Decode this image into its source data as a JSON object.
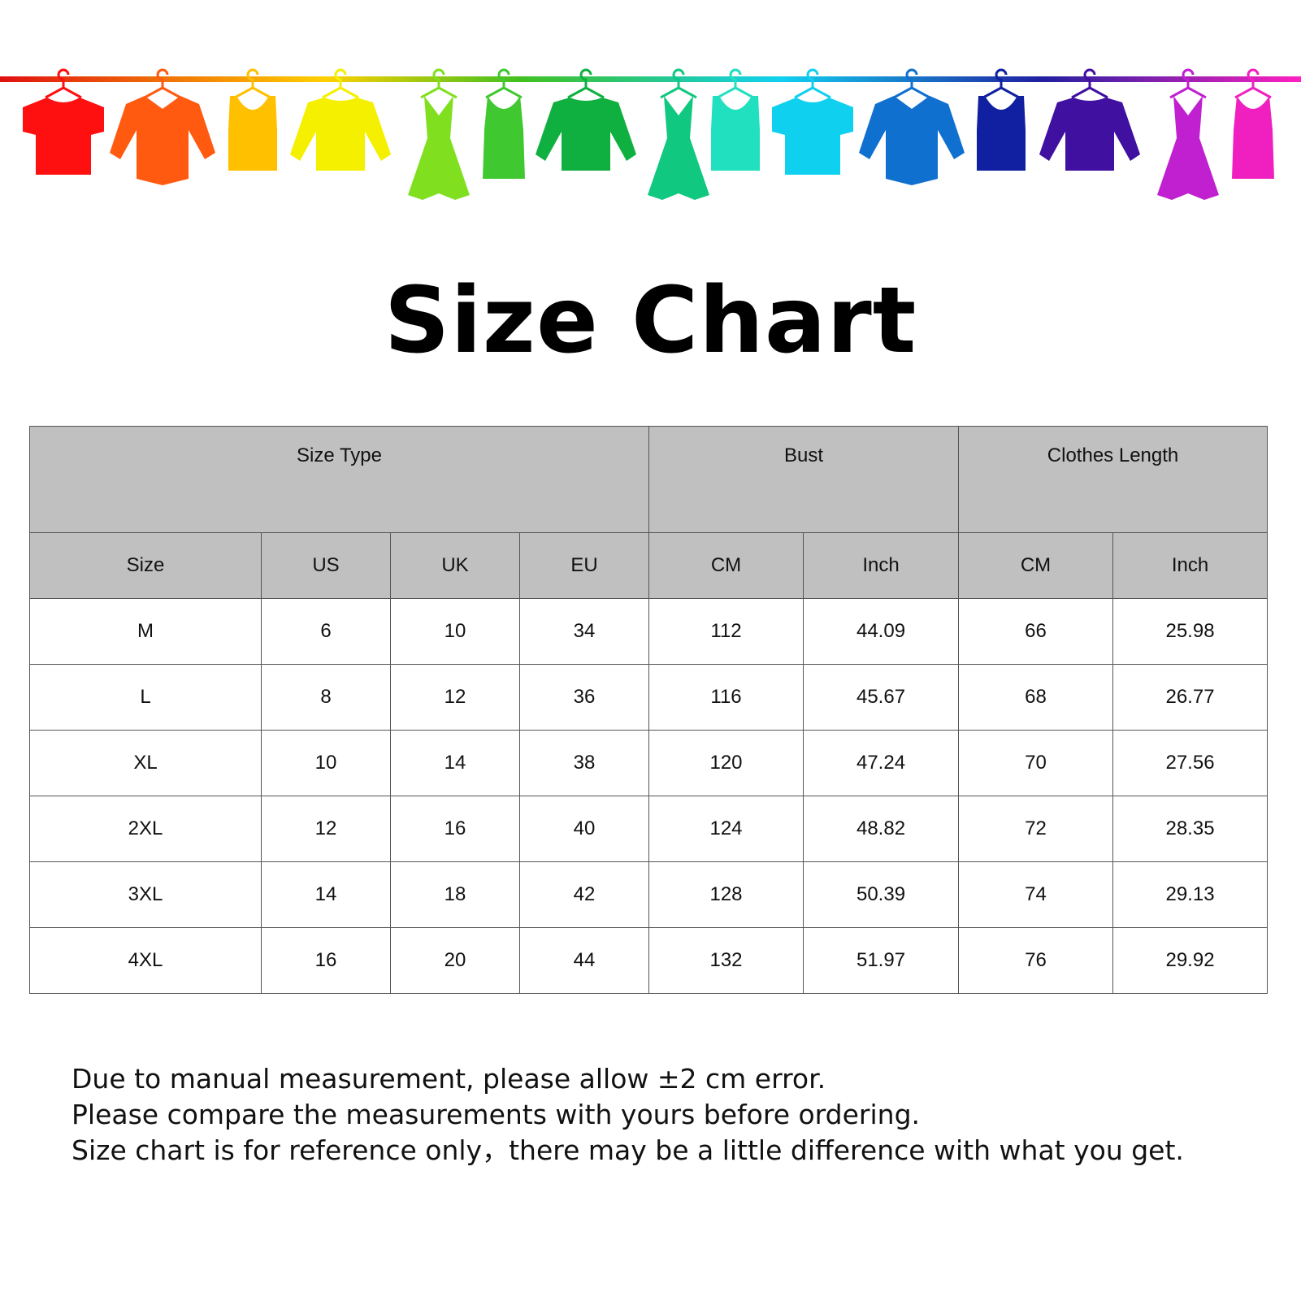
{
  "title": "Size Chart",
  "banner": {
    "garments": [
      {
        "type": "t-shirt",
        "color": "#ff1010"
      },
      {
        "type": "shirt",
        "color": "#ff5a10"
      },
      {
        "type": "tank",
        "color": "#ffc000"
      },
      {
        "type": "sweater",
        "color": "#f4f000"
      },
      {
        "type": "dress",
        "color": "#80e020"
      },
      {
        "type": "tank-dress",
        "color": "#40c830"
      },
      {
        "type": "sweater",
        "color": "#10b040"
      },
      {
        "type": "dress",
        "color": "#10c880"
      },
      {
        "type": "tank",
        "color": "#20e0c0"
      },
      {
        "type": "t-shirt",
        "color": "#10d0f0"
      },
      {
        "type": "shirt",
        "color": "#1070d0"
      },
      {
        "type": "tank",
        "color": "#1020a0"
      },
      {
        "type": "sweater",
        "color": "#4010a0"
      },
      {
        "type": "dress",
        "color": "#c020d0"
      },
      {
        "type": "tank-dress",
        "color": "#f020c0"
      }
    ]
  },
  "table": {
    "group_headers": [
      "Size Type",
      "Bust",
      "Clothes Length"
    ],
    "columns": [
      "Size",
      "US",
      "UK",
      "EU",
      "CM",
      "Inch",
      "CM",
      "Inch"
    ],
    "rows": [
      [
        "M",
        "6",
        "10",
        "34",
        "112",
        "44.09",
        "66",
        "25.98"
      ],
      [
        "L",
        "8",
        "12",
        "36",
        "116",
        "45.67",
        "68",
        "26.77"
      ],
      [
        "XL",
        "10",
        "14",
        "38",
        "120",
        "47.24",
        "70",
        "27.56"
      ],
      [
        "2XL",
        "12",
        "16",
        "40",
        "124",
        "48.82",
        "72",
        "28.35"
      ],
      [
        "3XL",
        "14",
        "18",
        "42",
        "128",
        "50.39",
        "74",
        "29.13"
      ],
      [
        "4XL",
        "16",
        "20",
        "44",
        "132",
        "51.97",
        "76",
        "29.92"
      ]
    ]
  },
  "notes": [
    "Due to manual measurement, please allow ±2 cm error.",
    "Please compare the measurements with yours before ordering.",
    "Size chart is for reference only，there may be a little difference with what you get."
  ]
}
